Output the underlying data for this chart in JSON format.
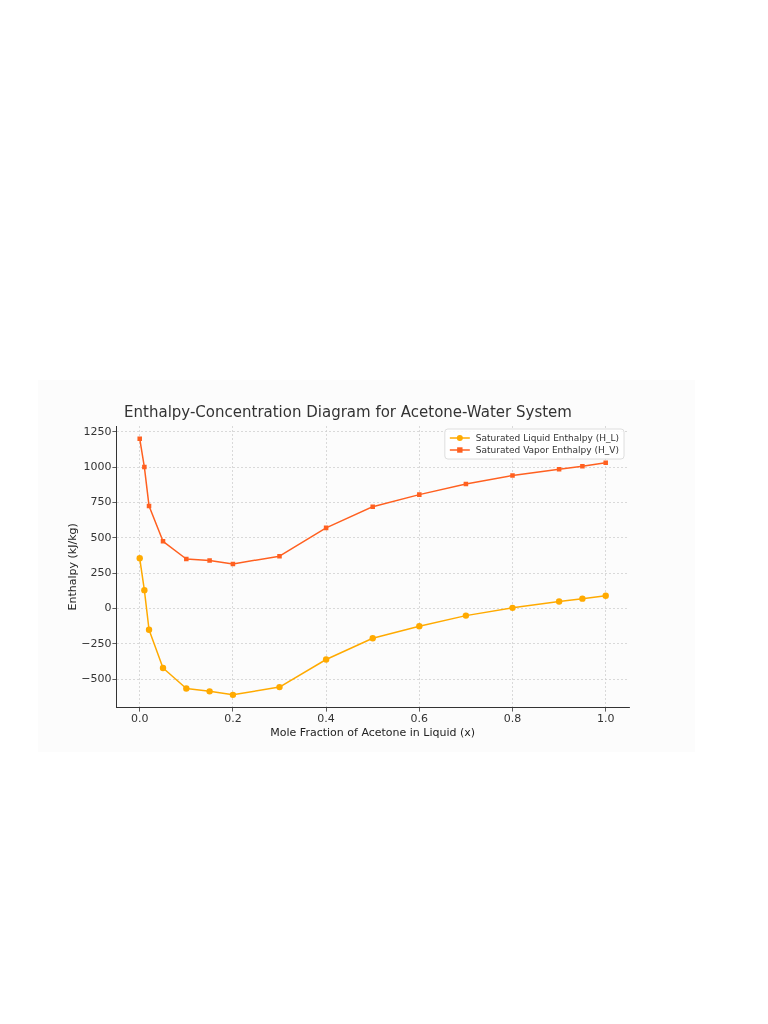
{
  "chart_data": {
    "type": "line",
    "title": "Enthalpy-Concentration Diagram for Acetone-Water System",
    "xlabel": "Mole Fraction of Acetone in Liquid (x)",
    "ylabel": "Enthalpy (kJ/kg)",
    "x": [
      0,
      0.01,
      0.02,
      0.05,
      0.1,
      0.15,
      0.2,
      0.3,
      0.4,
      0.5,
      0.6,
      0.7,
      0.8,
      0.9,
      0.95,
      1.0
    ],
    "series": [
      {
        "name": "Saturated Liquid Enthalpy (H_L)",
        "color": "#ffaa00",
        "marker": "circle",
        "values": [
          355,
          130,
          -150,
          -420,
          -565,
          -585,
          -610,
          -555,
          -360,
          -210,
          -125,
          -50,
          5,
          50,
          70,
          90
        ]
      },
      {
        "name": "Saturated Vapor Enthalpy (H_V)",
        "color": "#ff6020",
        "marker": "square",
        "values": [
          1200,
          1000,
          725,
          475,
          350,
          340,
          315,
          370,
          570,
          720,
          805,
          880,
          940,
          985,
          1005,
          1030
        ]
      }
    ],
    "xlim": [
      -0.05,
      1.05
    ],
    "xticks": [
      {
        "value": 0,
        "label": "0.0"
      },
      0.2,
      0.4,
      0.6,
      0.8,
      {
        "value": 1,
        "label": "1.0"
      }
    ],
    "ylim": [
      -700,
      1290
    ],
    "yticks": [
      {
        "value": -500,
        "label": "−500"
      },
      {
        "value": -250,
        "label": "−250"
      },
      0,
      250,
      500,
      750,
      1000,
      1250
    ],
    "grid": true,
    "legend": "top right",
    "line_style": "solid"
  }
}
